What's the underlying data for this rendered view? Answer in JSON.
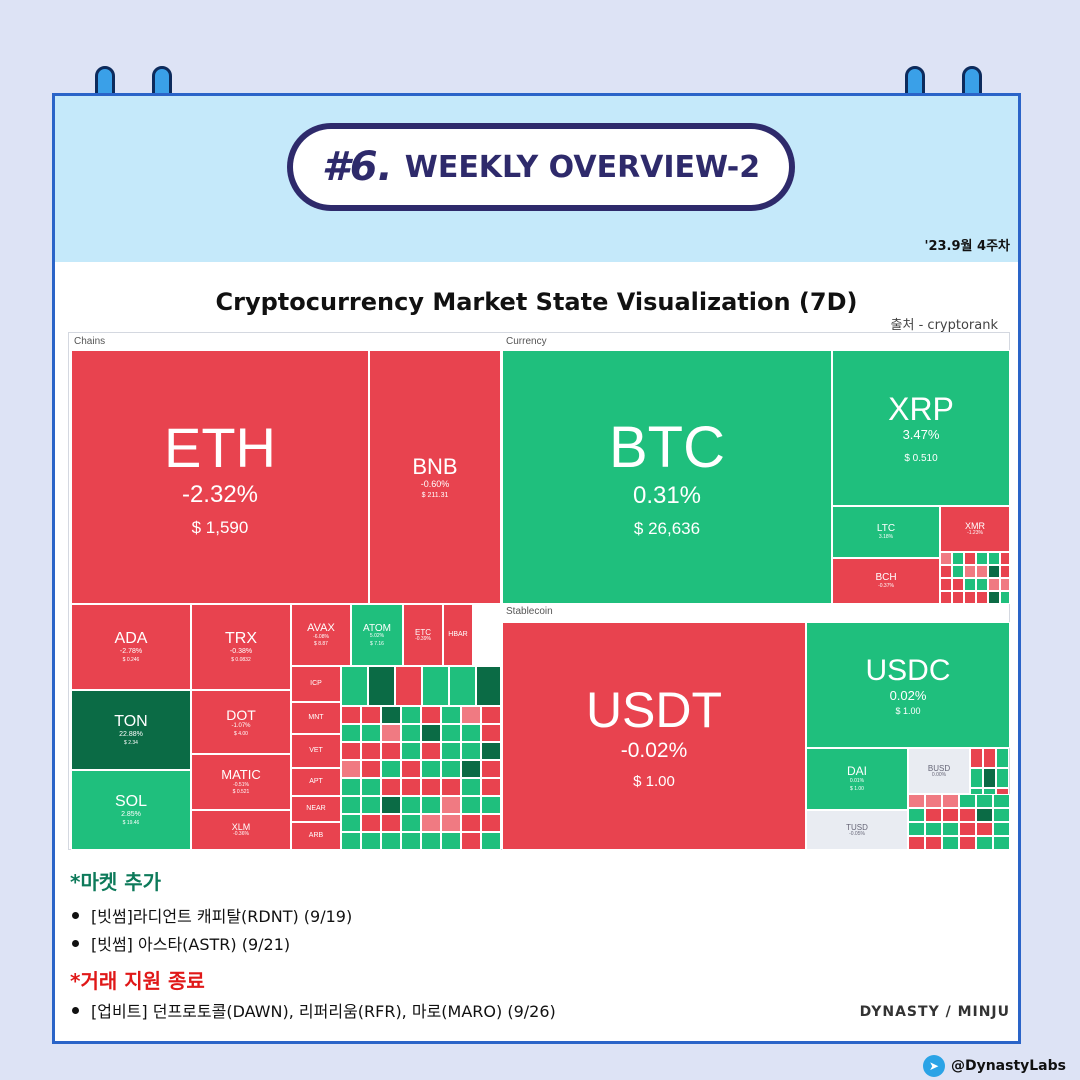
{
  "header": {
    "number": "#6.",
    "title": "WEEKLY OVERVIEW-2",
    "date": "'23.9월 4주차"
  },
  "chart": {
    "title": "Cryptocurrency Market State Visualization (7D)",
    "source": "출처 - cryptorank",
    "groups": {
      "chains": "Chains",
      "currency": "Currency",
      "stablecoin": "Stablecoin"
    }
  },
  "chart_data": {
    "type": "heatmap",
    "title": "Cryptocurrency Market State Visualization (7D)",
    "tiles": [
      {
        "group": "Chains",
        "name": "ETH",
        "change": "-2.32%",
        "price": "$ 1,590"
      },
      {
        "group": "Chains",
        "name": "BNB",
        "change": "-0.60%",
        "price": "$ 211.31"
      },
      {
        "group": "Chains",
        "name": "ADA",
        "change": "-2.78%",
        "price": "$ 0.246"
      },
      {
        "group": "Chains",
        "name": "TRX",
        "change": "-0.38%",
        "price": "$ 0.0832"
      },
      {
        "group": "Chains",
        "name": "AVAX",
        "change": "-6.08%",
        "price": "$ 8.87"
      },
      {
        "group": "Chains",
        "name": "ATOM",
        "change": "5.02%",
        "price": "$ 7.16"
      },
      {
        "group": "Chains",
        "name": "ETC",
        "change": "-0.39%",
        "price": ""
      },
      {
        "group": "Chains",
        "name": "HBAR",
        "change": "",
        "price": ""
      },
      {
        "group": "Chains",
        "name": "TON",
        "change": "22.88%",
        "price": "$ 2.34"
      },
      {
        "group": "Chains",
        "name": "DOT",
        "change": "-1.07%",
        "price": "$ 4.00"
      },
      {
        "group": "Chains",
        "name": "MATIC",
        "change": "-0.51%",
        "price": "$ 0.521"
      },
      {
        "group": "Chains",
        "name": "SOL",
        "change": "2.85%",
        "price": "$ 19.46"
      },
      {
        "group": "Chains",
        "name": "XLM",
        "change": "-0.36%",
        "price": ""
      },
      {
        "group": "Chains",
        "name": "ICP",
        "change": "",
        "price": ""
      },
      {
        "group": "Chains",
        "name": "MNT",
        "change": "",
        "price": ""
      },
      {
        "group": "Chains",
        "name": "VET",
        "change": "",
        "price": ""
      },
      {
        "group": "Chains",
        "name": "APT",
        "change": "",
        "price": ""
      },
      {
        "group": "Chains",
        "name": "NEAR",
        "change": "",
        "price": ""
      },
      {
        "group": "Chains",
        "name": "ARB",
        "change": "",
        "price": ""
      },
      {
        "group": "Currency",
        "name": "BTC",
        "change": "0.31%",
        "price": "$ 26,636"
      },
      {
        "group": "Currency",
        "name": "XRP",
        "change": "3.47%",
        "price": "$ 0.510"
      },
      {
        "group": "Currency",
        "name": "LTC",
        "change": "3.18%",
        "price": ""
      },
      {
        "group": "Currency",
        "name": "XMR",
        "change": "-1.23%",
        "price": ""
      },
      {
        "group": "Currency",
        "name": "BCH",
        "change": "-0.37%",
        "price": ""
      },
      {
        "group": "Stablecoin",
        "name": "USDT",
        "change": "-0.02%",
        "price": "$ 1.00"
      },
      {
        "group": "Stablecoin",
        "name": "USDC",
        "change": "0.02%",
        "price": "$ 1.00"
      },
      {
        "group": "Stablecoin",
        "name": "DAI",
        "change": "0.01%",
        "price": "$ 1.00"
      },
      {
        "group": "Stablecoin",
        "name": "BUSD",
        "change": "0.00%",
        "price": ""
      },
      {
        "group": "Stablecoin",
        "name": "TUSD",
        "change": "-0.05%",
        "price": ""
      }
    ],
    "colors": {
      "negative": "#e8434f",
      "positive": "#1fbf7d",
      "strong_positive": "#0b6b45",
      "neutral": "#e9ecf2"
    }
  },
  "market_add": {
    "title": "*마켓 추가",
    "items": [
      "[빗썸]라디언트 캐피탈(RDNT) (9/19)",
      "[빗썸] 아스타(ASTR) (9/21)"
    ]
  },
  "delist": {
    "title": "*거래 지원 종료",
    "items": [
      "[업비트] 던프로토콜(DAWN), 리퍼리움(RFR), 마로(MARO) (9/26)"
    ]
  },
  "signature": "DYNASTY / MINJU",
  "handle": "@DynastyLabs",
  "colors": {
    "accent_navy": "#2e2a6b",
    "header_bg": "#c5e9fa",
    "green_title": "#0d7a5a",
    "red_title": "#e01818",
    "border_blue": "#2a64c8"
  }
}
